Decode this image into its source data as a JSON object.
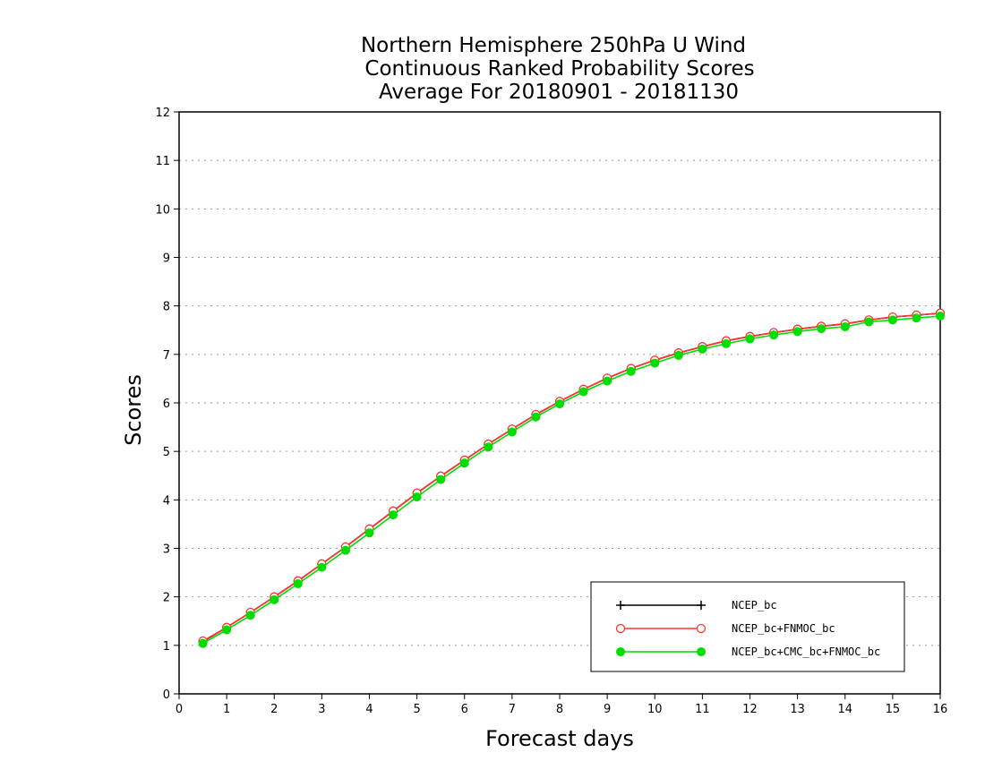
{
  "chart_data": {
    "type": "line",
    "title": [
      "Northern Hemisphere 250hPa U Wind",
      "Continuous Ranked Probability Scores",
      "Average For 20180901 - 20181130"
    ],
    "xlabel": "Forecast days",
    "ylabel": "Scores",
    "xlim": [
      0,
      16
    ],
    "ylim": [
      0,
      12
    ],
    "x_ticks": [
      "0",
      "1",
      "2",
      "3",
      "4",
      "5",
      "6",
      "7",
      "8",
      "9",
      "10",
      "11",
      "12",
      "13",
      "14",
      "15",
      "16"
    ],
    "y_ticks": [
      "0",
      "1",
      "2",
      "3",
      "4",
      "5",
      "6",
      "7",
      "8",
      "9",
      "10",
      "11",
      "12"
    ],
    "grid": "horizontal dotted",
    "legend_position": "bottom-right",
    "x": [
      0.5,
      1,
      1.5,
      2,
      2.5,
      3,
      3.5,
      4,
      4.5,
      5,
      5.5,
      6,
      6.5,
      7,
      7.5,
      8,
      8.5,
      9,
      9.5,
      10,
      10.5,
      11,
      11.5,
      12,
      12.5,
      13,
      13.5,
      14,
      14.5,
      15,
      15.5,
      16
    ],
    "series": [
      {
        "name": "NCEP_bc",
        "color": "#000000",
        "marker": "plus",
        "values": [
          1.08,
          1.37,
          1.68,
          2.0,
          2.33,
          2.68,
          3.03,
          3.4,
          3.77,
          4.14,
          4.49,
          4.82,
          5.15,
          5.46,
          5.76,
          6.03,
          6.28,
          6.51,
          6.71,
          6.88,
          7.03,
          7.16,
          7.28,
          7.37,
          7.45,
          7.52,
          7.58,
          7.63,
          7.71,
          7.77,
          7.81,
          7.85
        ]
      },
      {
        "name": "NCEP_bc+FNMOC_bc",
        "color": "#ff3333",
        "marker": "open-circle",
        "values": [
          1.09,
          1.37,
          1.68,
          2.0,
          2.33,
          2.68,
          3.03,
          3.4,
          3.77,
          4.14,
          4.49,
          4.82,
          5.15,
          5.46,
          5.76,
          6.03,
          6.28,
          6.51,
          6.71,
          6.88,
          7.03,
          7.16,
          7.28,
          7.37,
          7.45,
          7.52,
          7.58,
          7.63,
          7.71,
          7.77,
          7.81,
          7.85
        ]
      },
      {
        "name": "NCEP_bc+CMC_bc+FNMOC_bc",
        "color": "#00dd00",
        "marker": "filled-circle",
        "values": [
          1.04,
          1.32,
          1.62,
          1.94,
          2.27,
          2.61,
          2.96,
          3.32,
          3.69,
          4.06,
          4.42,
          4.76,
          5.09,
          5.4,
          5.71,
          5.98,
          6.23,
          6.45,
          6.65,
          6.82,
          6.98,
          7.11,
          7.22,
          7.32,
          7.4,
          7.47,
          7.53,
          7.57,
          7.67,
          7.71,
          7.75,
          7.79
        ]
      }
    ]
  }
}
